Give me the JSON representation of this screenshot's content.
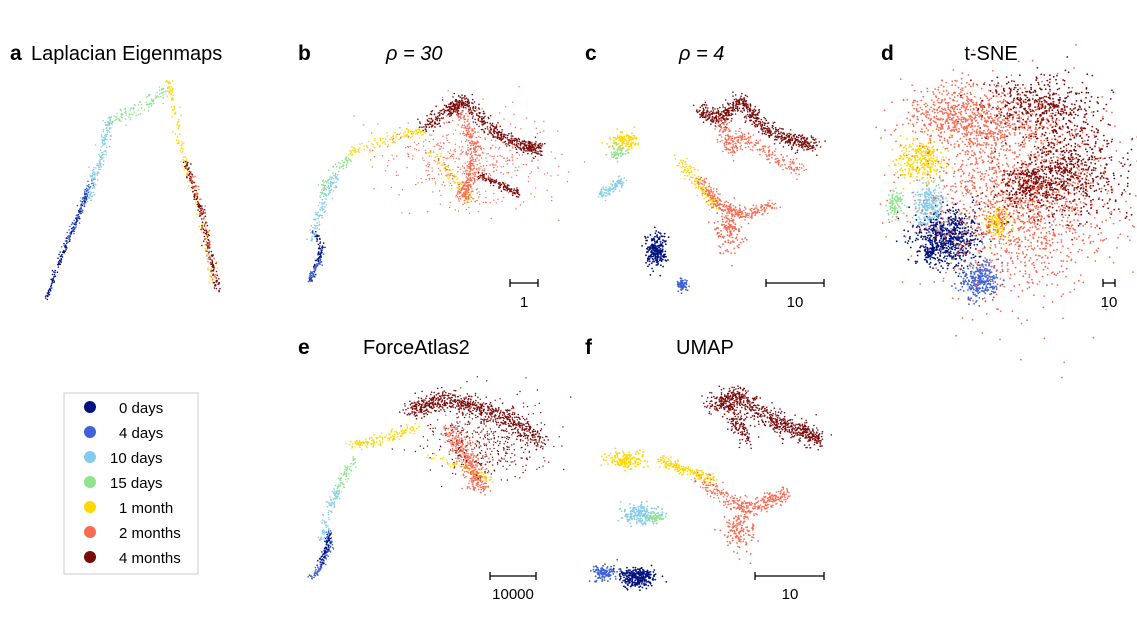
{
  "colors": {
    "0 days": "#00127f",
    "4 days": "#3f62d8",
    "10 days": "#86cbeb",
    "15 days": "#8fe38f",
    "1 month": "#ffd700",
    "2 months": "#fa6a52",
    "4 months": "#7b0a0a"
  },
  "legend": {
    "items": [
      {
        "label": "0 days",
        "color": "#00127f"
      },
      {
        "label": "4 days",
        "color": "#3f62d8"
      },
      {
        "label": "10 days",
        "color": "#86cbeb"
      },
      {
        "label": "15 days",
        "color": "#8fe38f"
      },
      {
        "label": "1 month",
        "color": "#ffd700"
      },
      {
        "label": "2 months",
        "color": "#fa6a52"
      },
      {
        "label": "4 months",
        "color": "#7b0a0a"
      }
    ]
  },
  "panels": [
    {
      "letter": "a",
      "title": "Laplacian Eigenmaps",
      "scale_label": ""
    },
    {
      "letter": "b",
      "title": "ρ = 30",
      "scale_label": "1"
    },
    {
      "letter": "c",
      "title": "ρ = 4",
      "scale_label": "10"
    },
    {
      "letter": "d",
      "title": "t-SNE",
      "scale_label": "10"
    },
    {
      "letter": "e",
      "title": "ForceAtlas2",
      "scale_label": "10000"
    },
    {
      "letter": "f",
      "title": "UMAP",
      "scale_label": "10"
    }
  ]
}
